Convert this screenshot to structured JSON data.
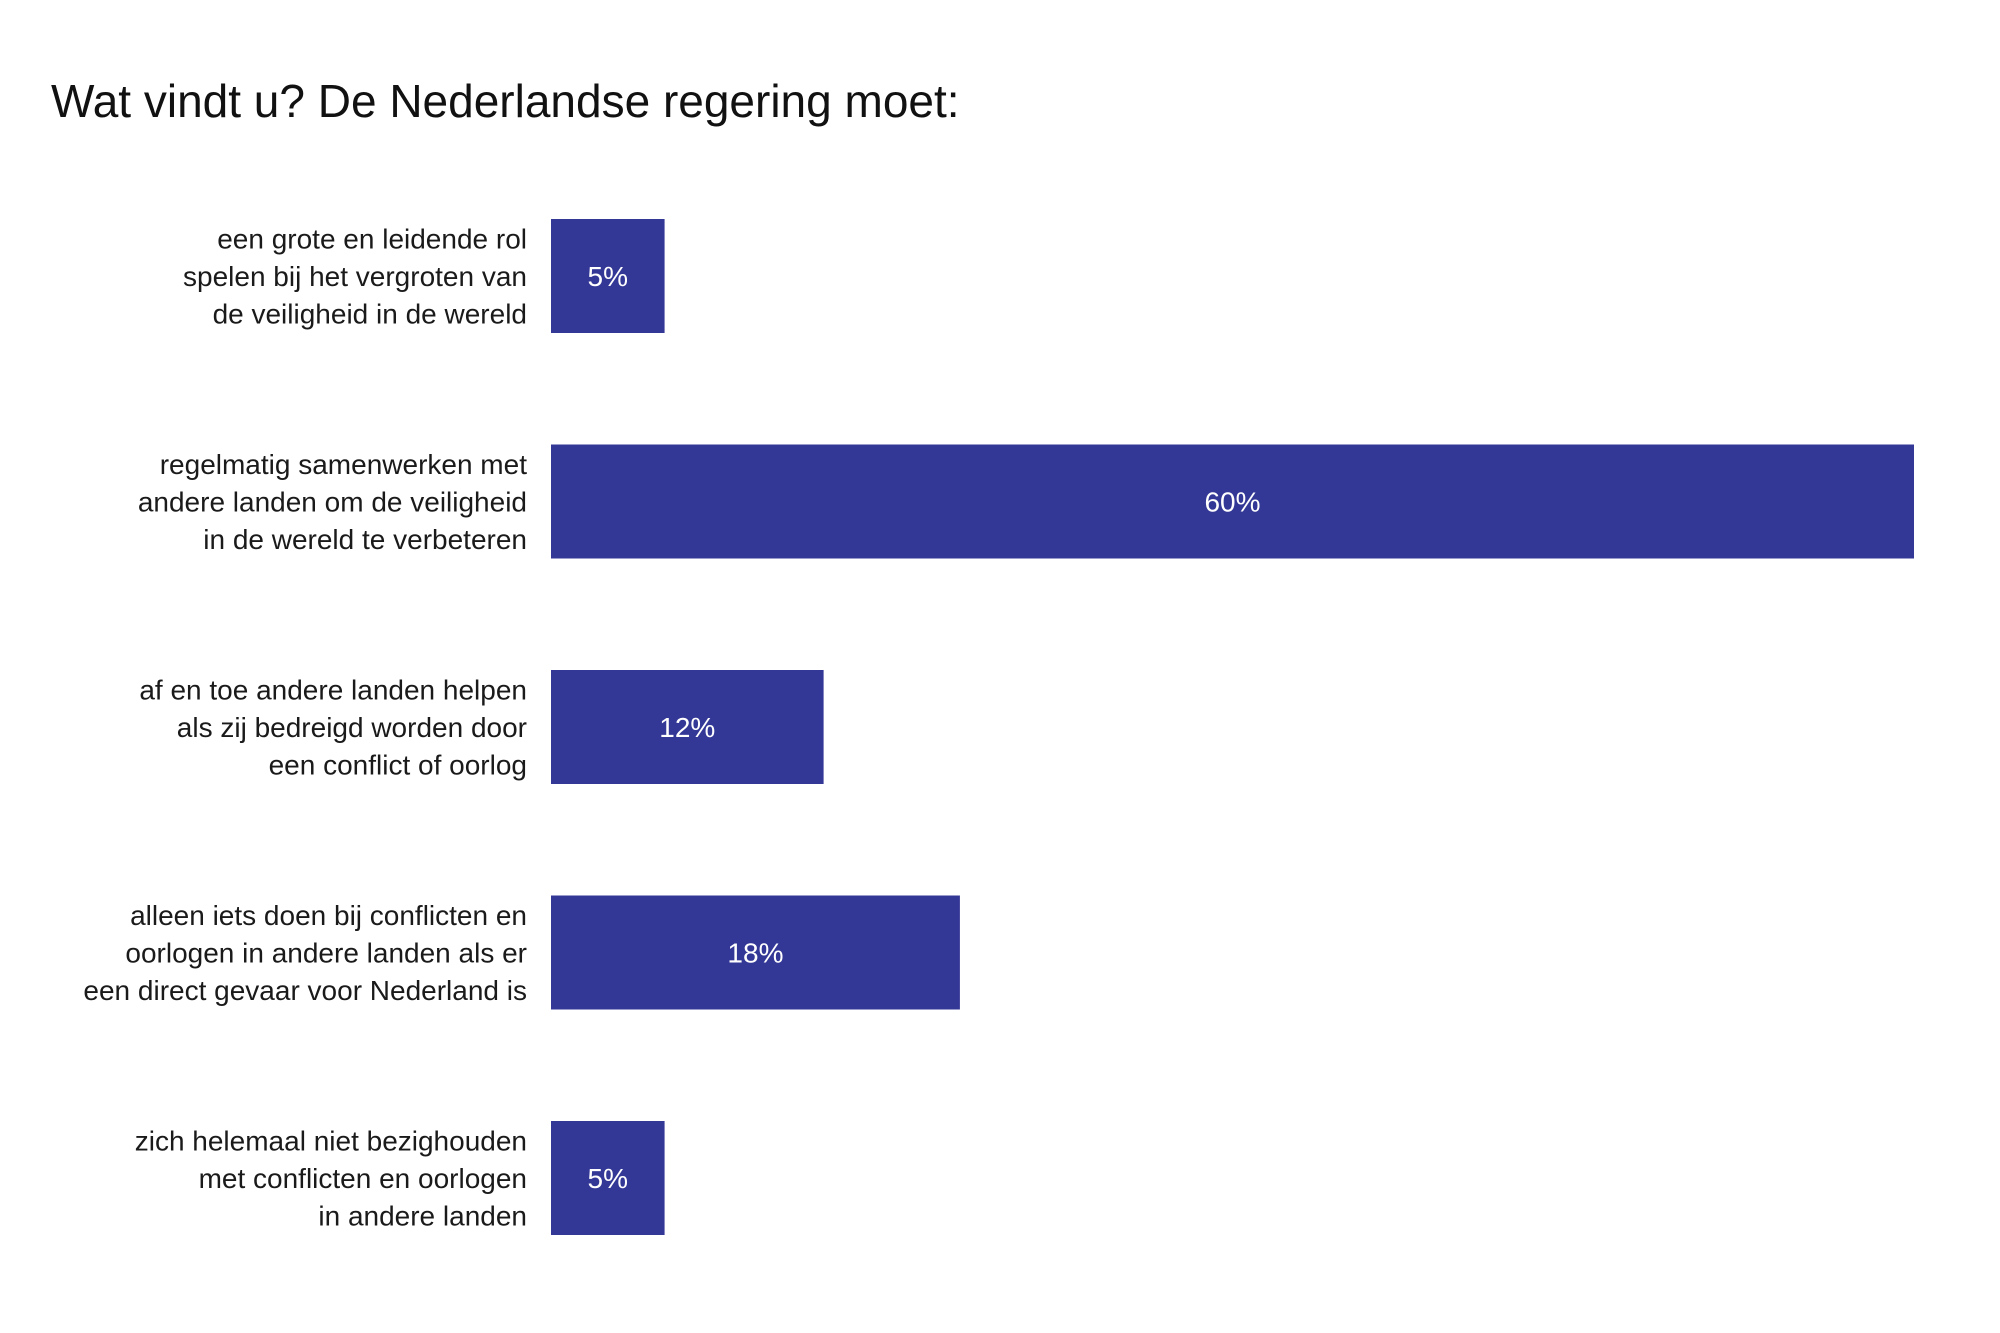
{
  "chart_data": {
    "type": "bar",
    "orientation": "horizontal",
    "title": "Wat vindt u? De Nederlandse regering moet:",
    "xlabel": "",
    "ylabel": "",
    "xlim": [
      0,
      60
    ],
    "grid": false,
    "bar_color": "#333795",
    "categories": [
      [
        "een grote en leidende rol",
        "spelen bij het vergroten van",
        "de veiligheid in de wereld"
      ],
      [
        "regelmatig samenwerken met",
        "andere landen om de veiligheid",
        "in de wereld te verbeteren"
      ],
      [
        "af en toe andere landen helpen",
        "als zij bedreigd worden door",
        "een conflict of oorlog"
      ],
      [
        "alleen iets doen bij conflicten en",
        "oorlogen in andere landen als er",
        "een direct gevaar voor Nederland is"
      ],
      [
        "zich helemaal niet bezighouden",
        "met conflicten en oorlogen",
        "in andere landen"
      ]
    ],
    "values": [
      5,
      60,
      12,
      18,
      5
    ],
    "labels": [
      "5%",
      "60%",
      "12%",
      "18%",
      "5%"
    ]
  }
}
